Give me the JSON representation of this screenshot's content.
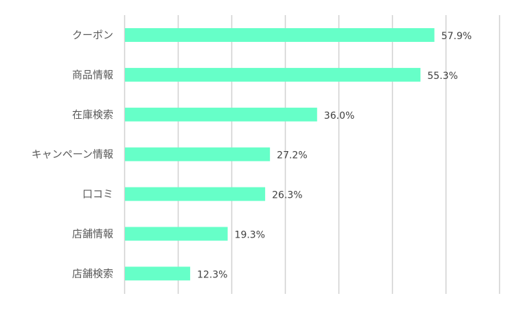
{
  "chart_data": {
    "type": "bar",
    "orientation": "horizontal",
    "categories": [
      "クーポン",
      "商品情報",
      "在庫検索",
      "キャンペーン情報",
      "口コミ",
      "店舗情報",
      "店舗検索"
    ],
    "values": [
      57.9,
      55.3,
      36.0,
      27.2,
      26.3,
      19.3,
      12.3
    ],
    "data_labels": [
      "57.9%",
      "55.3%",
      "36.0%",
      "27.2%",
      "26.3%",
      "19.3%",
      "12.3%"
    ],
    "xlim": [
      0,
      70
    ],
    "x_gridline_step": 10,
    "grid": true,
    "legend": "none",
    "title": "",
    "xlabel": "",
    "ylabel": "",
    "bar_color": "#66FFC8",
    "grid_color": "#D0D0D0"
  }
}
